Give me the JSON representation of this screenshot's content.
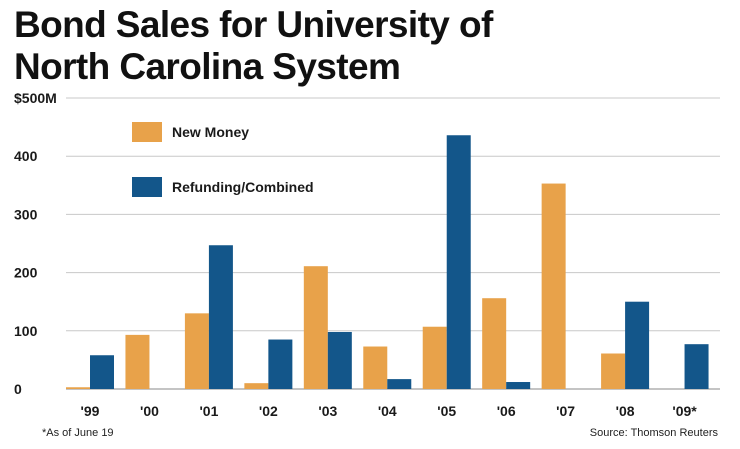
{
  "chart_data": {
    "type": "bar",
    "title_lines": [
      "Bond Sales for University of",
      "North Carolina System"
    ],
    "categories": [
      "'99",
      "'00",
      "'01",
      "'02",
      "'03",
      "'04",
      "'05",
      "'06",
      "'07",
      "'08",
      "'09*"
    ],
    "series": [
      {
        "name": "New Money",
        "color": "#e8a24a",
        "values": [
          3,
          93,
          130,
          10,
          211,
          73,
          107,
          156,
          353,
          61,
          0
        ]
      },
      {
        "name": "Refunding/Combined",
        "color": "#13568a",
        "values": [
          58,
          0,
          247,
          85,
          98,
          17,
          436,
          12,
          0,
          150,
          77
        ]
      }
    ],
    "ylim": [
      0,
      500
    ],
    "yticks": [
      0,
      100,
      200,
      300,
      400,
      500
    ],
    "ytick_labels": [
      "0",
      "100",
      "200",
      "300",
      "400",
      "$500M"
    ],
    "grid": true,
    "legend_position": "top-left",
    "footnote": "*As of June 19",
    "source": "Source: Thomson Reuters"
  }
}
